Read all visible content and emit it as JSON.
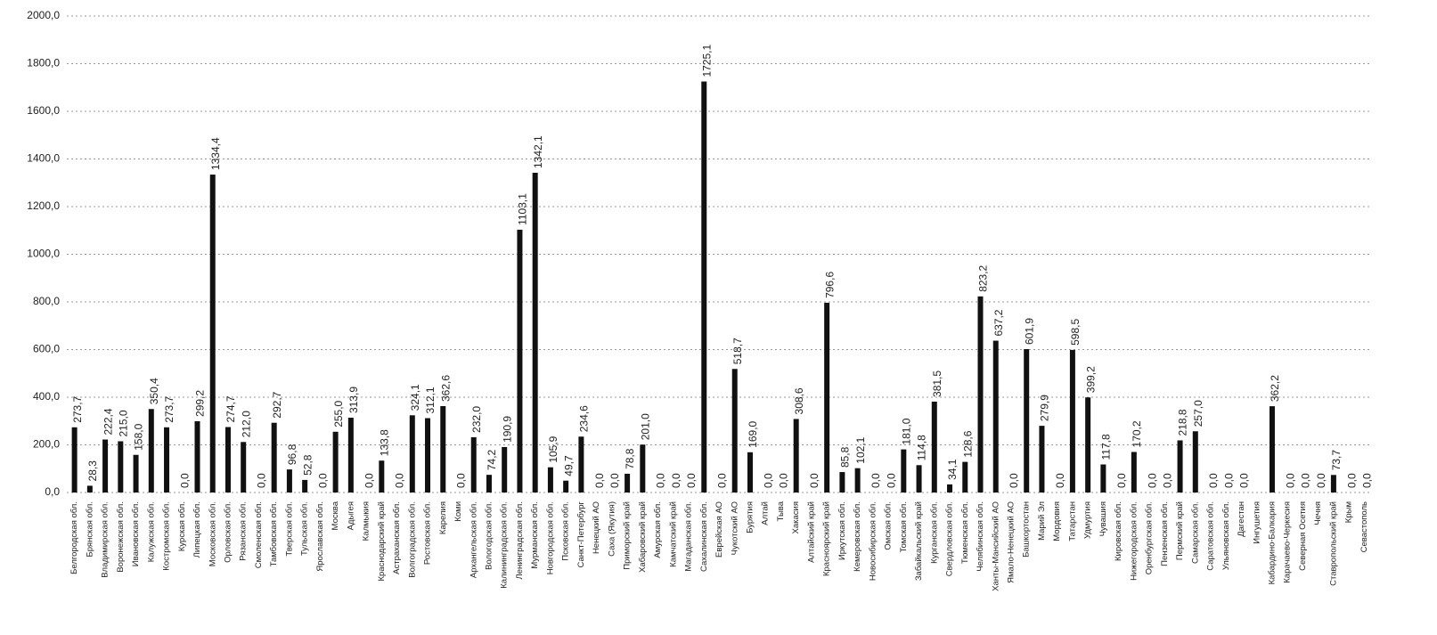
{
  "chart_data": {
    "type": "bar",
    "categories": [
      "Белгородская обл.",
      "Брянская обл.",
      "Владимирская обл.",
      "Воронежская обл.",
      "Ивановская обл.",
      "Калужская обл.",
      "Костромская обл.",
      "Курская обл.",
      "Липецкая обл.",
      "Московская обл.",
      "Орловская обл.",
      "Рязанская обл.",
      "Смоленская обл.",
      "Тамбовская обл.",
      "Тверская обл.",
      "Тульская обл.",
      "Ярославская обл.",
      "Москва",
      "Адыгея",
      "Калмыкия",
      "Краснодарский край",
      "Астраханская обл.",
      "Волгоградская обл.",
      "Ростовская обл.",
      "Карелия",
      "Коми",
      "Архангельская обл.",
      "Вологодская обл.",
      "Калининградская обл.",
      "Ленинградская обл.",
      "Мурманская обл.",
      "Новгородская обл.",
      "Псковская обл.",
      "Санкт-Петербург",
      "Ненецкий АО",
      "Саха (Якутия)",
      "Приморский край",
      "Хабаровский край",
      "Амурская обл.",
      "Камчатский край",
      "Магаданская обл.",
      "Сахалинская обл.",
      "Еврейская АО",
      "Чукотский АО",
      "Бурятия",
      "Алтай",
      "Тыва",
      "Хакасия",
      "Алтайский край",
      "Красноярский край",
      "Иркутская обл.",
      "Кемеровская обл.",
      "Новосибирская обл.",
      "Омская обл.",
      "Томская обл.",
      "Забайкальский край",
      "Курганская обл.",
      "Свердловская обл.",
      "Тюменская обл.",
      "Челябинская обл.",
      "Ханты-Мансийский АО",
      "Ямало-Ненецкий АО",
      "Башкортостан",
      "Марий Эл",
      "Мордовия",
      "Татарстан",
      "Удмуртия",
      "Чувашия",
      "Кировская обл.",
      "Нижегородская обл.",
      "Оренбургская обл.",
      "Пензенская обл.",
      "Пермский край",
      "Самарская обл.",
      "Саратовская обл.",
      "Ульяновская обл.",
      "Дагестан",
      "Ингушетия",
      "Кабардино-Балкария",
      "Карачаево-Черкесия",
      "Северная Осетия",
      "Чечня",
      "Ставропольский край",
      "Крым",
      "Севастополь"
    ],
    "values": [
      273.7,
      28.3,
      222.4,
      215.0,
      158.0,
      350.4,
      273.7,
      0.0,
      299.2,
      1334.4,
      274.7,
      212.0,
      0.0,
      292.7,
      96.8,
      52.8,
      0.0,
      255.0,
      313.9,
      0.0,
      133.8,
      0.0,
      324.1,
      312.1,
      362.6,
      0.0,
      232.0,
      74.2,
      190.9,
      1103.1,
      1342.1,
      105.9,
      49.7,
      234.6,
      0.0,
      0.0,
      78.8,
      201.0,
      0.0,
      0.0,
      0.0,
      1725.1,
      0.0,
      518.7,
      169.0,
      0.0,
      0.0,
      308.6,
      0.0,
      796.6,
      85.8,
      102.1,
      0.0,
      0.0,
      181.0,
      114.8,
      381.5,
      34.1,
      128.6,
      823.2,
      637.2,
      0.0,
      601.9,
      279.9,
      0.0,
      598.5,
      399.2,
      117.8,
      0.0,
      170.2,
      0.0,
      0.0,
      218.8,
      257.0,
      0.0,
      0.0,
      0.0,
      null,
      362.2,
      0.0,
      0.0,
      0.0,
      73.7,
      0.0,
      0.0
    ],
    "value_labels": [
      "273,7",
      "28,3",
      "222,4",
      "215,0",
      "158,0",
      "350,4",
      "273,7",
      "0,0",
      "299,2",
      "1334,4",
      "274,7",
      "212,0",
      "0,0",
      "292,7",
      "96,8",
      "52,8",
      "0,0",
      "255,0",
      "313,9",
      "0,0",
      "133,8",
      "0,0",
      "324,1",
      "312,1",
      "362,6",
      "0,0",
      "232,0",
      "74,2",
      "190,9",
      "1103,1",
      "1342,1",
      "105,9",
      "49,7",
      "234,6",
      "0,0",
      "0,0",
      "78,8",
      "201,0",
      "0,0",
      "0,0",
      "0,0",
      "1725,1",
      "0,0",
      "518,7",
      "169,0",
      "0,0",
      "0,0",
      "308,6",
      "0,0",
      "796,6",
      "85,8",
      "102,1",
      "0,0",
      "0,0",
      "181,0",
      "114,8",
      "381,5",
      "34,1",
      "128,6",
      "823,2",
      "637,2",
      "0,0",
      "601,9",
      "279,9",
      "0,0",
      "598,5",
      "399,2",
      "117,8",
      "0,0",
      "170,2",
      "0,0",
      "0,0",
      "218,8",
      "257,0",
      "0,0",
      "0,0",
      "0,0",
      null,
      "362,2",
      "0,0",
      "0,0",
      "0,0",
      "73,7",
      "0,0",
      "0,0"
    ],
    "color": "#111111",
    "ylim": [
      0,
      2000
    ],
    "yticks": [
      {
        "value": 0,
        "label": "0,0"
      },
      {
        "value": 200,
        "label": "200,0"
      },
      {
        "value": 400,
        "label": "400,0"
      },
      {
        "value": 600,
        "label": "600,0"
      },
      {
        "value": 800,
        "label": "800,0"
      },
      {
        "value": 1000,
        "label": "1000,0"
      },
      {
        "value": 1200,
        "label": "1200,0"
      },
      {
        "value": 1400,
        "label": "1400,0"
      },
      {
        "value": 1600,
        "label": "1600,0"
      },
      {
        "value": 1800,
        "label": "1800,0"
      },
      {
        "value": 2000,
        "label": "2000,0"
      }
    ],
    "grid": true
  }
}
